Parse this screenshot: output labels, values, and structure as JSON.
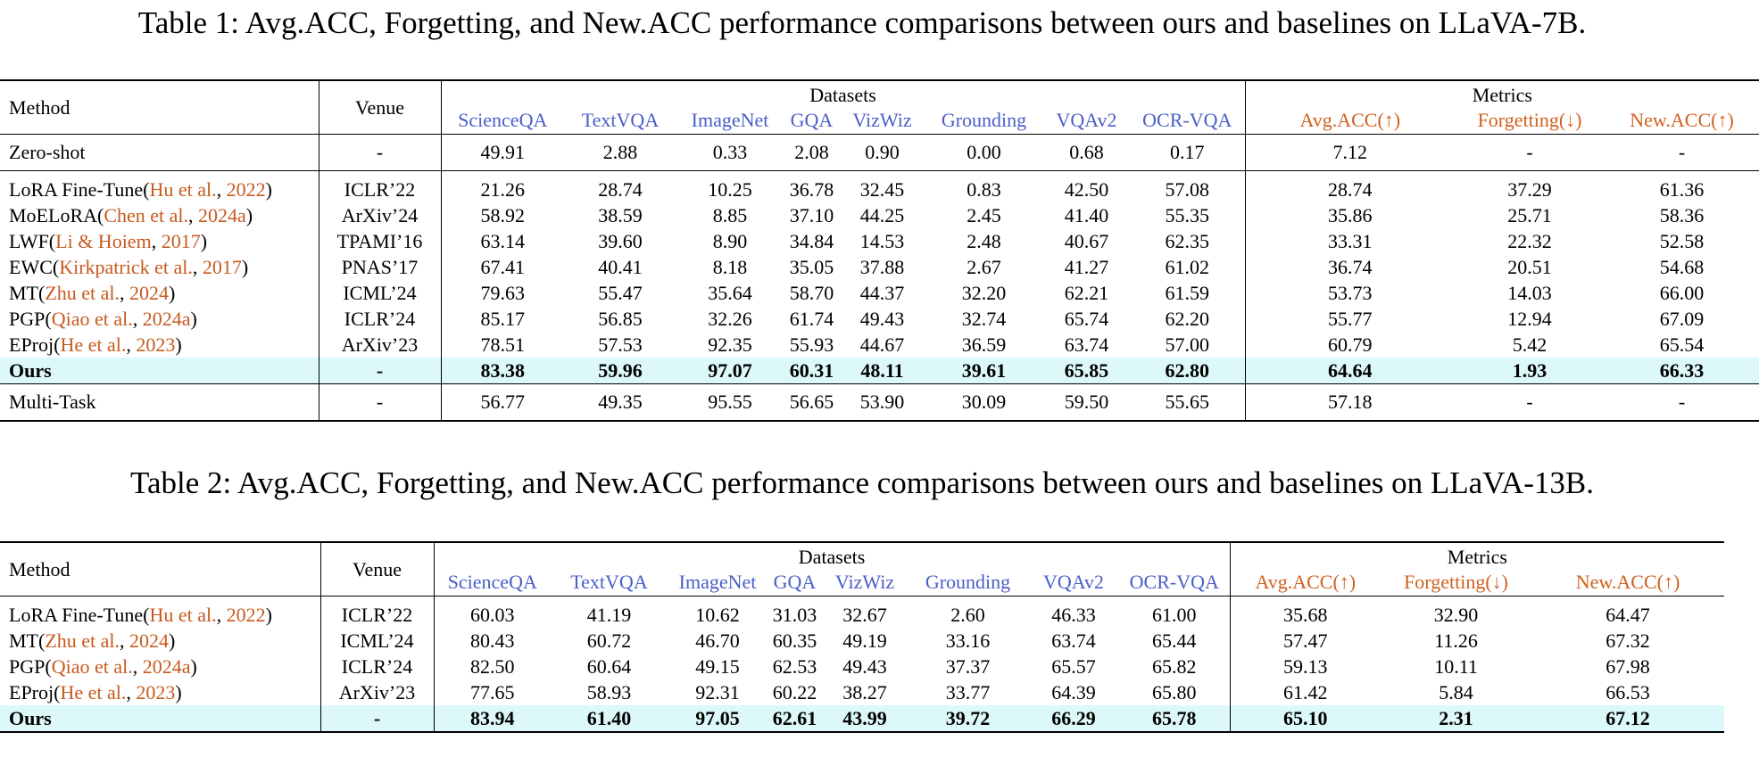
{
  "captions": {
    "table1": "Table 1: Avg.ACC, Forgetting, and New.ACC performance comparisons between ours and baselines on LLaVA-7B.",
    "table2": "Table 2: Avg.ACC, Forgetting, and New.ACC performance comparisons between ours and baselines on LLaVA-13B."
  },
  "headers": {
    "method": "Method",
    "venue": "Venue",
    "datasets_group": "Datasets",
    "metrics_group": "Metrics",
    "datasets": [
      "ScienceQA",
      "TextVQA",
      "ImageNet",
      "GQA",
      "VizWiz",
      "Grounding",
      "VQAv2",
      "OCR-VQA"
    ],
    "metrics": [
      "Avg.ACC(↑)",
      "Forgetting(↓)",
      "New.ACC(↑)"
    ]
  },
  "colors": {
    "dataset_header": "#4a5ec7",
    "metric_header": "#d1601f",
    "citation": "#c75a1e",
    "ours_highlight": "#dcf8f8"
  },
  "table1": {
    "zero_shot": {
      "method": "Zero-shot",
      "venue": "-",
      "values": [
        "49.91",
        "2.88",
        "0.33",
        "2.08",
        "0.90",
        "0.00",
        "0.68",
        "0.17",
        "7.12",
        "-",
        "-"
      ]
    },
    "rows": [
      {
        "method": "LoRA Fine-Tune(",
        "cite_author": "Hu et al.",
        "sep": ", ",
        "cite_year": "2022",
        "close": ")",
        "venue": "ICLR’22",
        "values": [
          "21.26",
          "28.74",
          "10.25",
          "36.78",
          "32.45",
          "0.83",
          "42.50",
          "57.08",
          "28.74",
          "37.29",
          "61.36"
        ]
      },
      {
        "method": "MoELoRA(",
        "cite_author": "Chen et al.",
        "sep": ", ",
        "cite_year": "2024a",
        "close": ")",
        "venue": "ArXiv’24",
        "values": [
          "58.92",
          "38.59",
          "8.85",
          "37.10",
          "44.25",
          "2.45",
          "41.40",
          "55.35",
          "35.86",
          "25.71",
          "58.36"
        ]
      },
      {
        "method": "LWF(",
        "cite_author": "Li & Hoiem",
        "sep": ", ",
        "cite_year": "2017",
        "close": ")",
        "venue": "TPAMI’16",
        "values": [
          "63.14",
          "39.60",
          "8.90",
          "34.84",
          "14.53",
          "2.48",
          "40.67",
          "62.35",
          "33.31",
          "22.32",
          "52.58"
        ]
      },
      {
        "method": "EWC(",
        "cite_author": "Kirkpatrick et al.",
        "sep": ", ",
        "cite_year": "2017",
        "close": ")",
        "venue": "PNAS’17",
        "values": [
          "67.41",
          "40.41",
          "8.18",
          "35.05",
          "37.88",
          "2.67",
          "41.27",
          "61.02",
          "36.74",
          "20.51",
          "54.68"
        ]
      },
      {
        "method": "MT(",
        "cite_author": "Zhu et al.",
        "sep": ", ",
        "cite_year": "2024",
        "close": ")",
        "venue": "ICML’24",
        "values": [
          "79.63",
          "55.47",
          "35.64",
          "58.70",
          "44.37",
          "32.20",
          "62.21",
          "61.59",
          "53.73",
          "14.03",
          "66.00"
        ]
      },
      {
        "method": "PGP(",
        "cite_author": "Qiao et al.",
        "sep": ", ",
        "cite_year": "2024a",
        "close": ")",
        "venue": "ICLR’24",
        "values": [
          "85.17",
          "56.85",
          "32.26",
          "61.74",
          "49.43",
          "32.74",
          "65.74",
          "62.20",
          "55.77",
          "12.94",
          "67.09"
        ]
      },
      {
        "method": "EProj(",
        "cite_author": "He et al.",
        "sep": ", ",
        "cite_year": "2023",
        "close": ")",
        "venue": "ArXiv’23",
        "values": [
          "78.51",
          "57.53",
          "92.35",
          "55.93",
          "44.67",
          "36.59",
          "63.74",
          "57.00",
          "60.79",
          "5.42",
          "65.54"
        ]
      }
    ],
    "ours": {
      "method": "Ours",
      "venue": "-",
      "values": [
        "83.38",
        "59.96",
        "97.07",
        "60.31",
        "48.11",
        "39.61",
        "65.85",
        "62.80",
        "64.64",
        "1.93",
        "66.33"
      ]
    },
    "multi_task": {
      "method": "Multi-Task",
      "venue": "-",
      "values": [
        "56.77",
        "49.35",
        "95.55",
        "56.65",
        "53.90",
        "30.09",
        "59.50",
        "55.65",
        "57.18",
        "-",
        "-"
      ]
    }
  },
  "table2": {
    "rows": [
      {
        "method": "LoRA Fine-Tune(",
        "cite_author": "Hu et al.",
        "sep": ", ",
        "cite_year": "2022",
        "close": ")",
        "venue": "ICLR’22",
        "values": [
          "60.03",
          "41.19",
          "10.62",
          "31.03",
          "32.67",
          "2.60",
          "46.33",
          "61.00",
          "35.68",
          "32.90",
          "64.47"
        ]
      },
      {
        "method": "MT(",
        "cite_author": "Zhu et al.",
        "sep": ", ",
        "cite_year": "2024",
        "close": ")",
        "venue": "ICML’24",
        "values": [
          "80.43",
          "60.72",
          "46.70",
          "60.35",
          "49.19",
          "33.16",
          "63.74",
          "65.44",
          "57.47",
          "11.26",
          "67.32"
        ]
      },
      {
        "method": "PGP(",
        "cite_author": "Qiao et al.",
        "sep": ", ",
        "cite_year": "2024a",
        "close": ")",
        "venue": "ICLR’24",
        "values": [
          "82.50",
          "60.64",
          "49.15",
          "62.53",
          "49.43",
          "37.37",
          "65.57",
          "65.82",
          "59.13",
          "10.11",
          "67.98"
        ]
      },
      {
        "method": "EProj(",
        "cite_author": "He et al.",
        "sep": ", ",
        "cite_year": "2023",
        "close": ")",
        "venue": "ArXiv’23",
        "values": [
          "77.65",
          "58.93",
          "92.31",
          "60.22",
          "38.27",
          "33.77",
          "64.39",
          "65.80",
          "61.42",
          "5.84",
          "66.53"
        ]
      },
      {
        "method": "Ours",
        "venue": "-",
        "ours": true,
        "values": [
          "83.94",
          "61.40",
          "97.05",
          "62.61",
          "43.99",
          "39.72",
          "66.29",
          "65.78",
          "65.10",
          "2.31",
          "67.12"
        ]
      }
    ]
  }
}
